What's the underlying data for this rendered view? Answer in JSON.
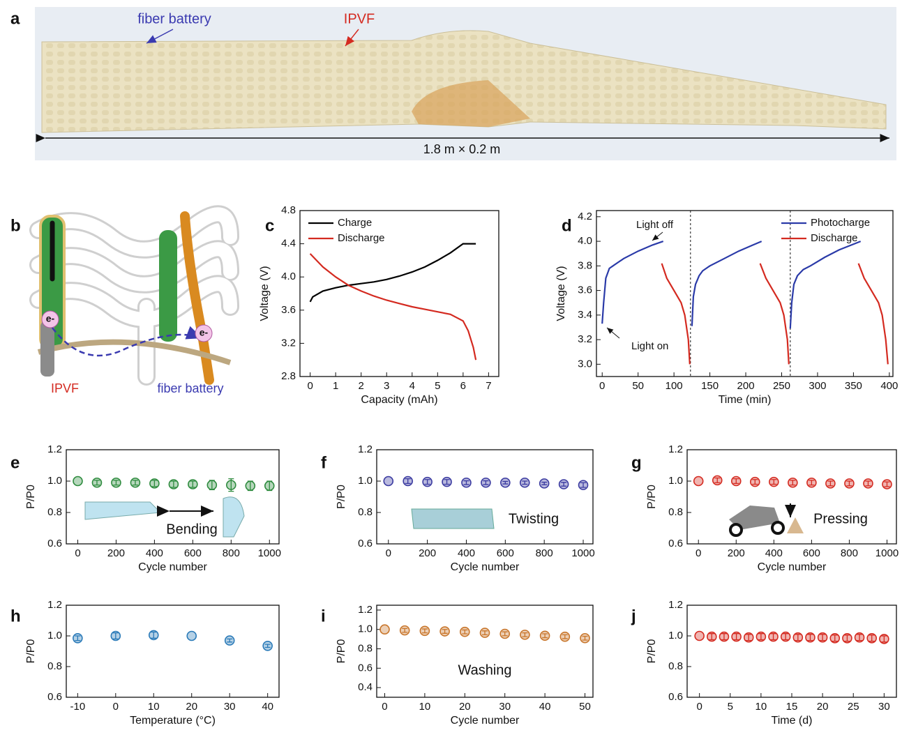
{
  "panel_labels": [
    "a",
    "b",
    "c",
    "d",
    "e",
    "f",
    "g",
    "h",
    "i",
    "j"
  ],
  "photo_a": {
    "labels": [
      "fiber battery",
      "IPVF",
      "1.8 m × 0.2 m"
    ]
  },
  "diagram_b": {
    "labels": [
      "IPVF",
      "fiber battery"
    ],
    "electron": "e-"
  },
  "chart_data": [
    {
      "type": "line",
      "xlabel": "Capacity (mAh)",
      "ylabel": "Voltage (V)",
      "xlim": [
        -0.4,
        7.4
      ],
      "xticks": [
        0,
        1,
        2,
        3,
        4,
        5,
        6,
        7
      ],
      "ylim": [
        2.8,
        4.8
      ],
      "yticks": [
        2.8,
        3.2,
        3.6,
        {
          "value": 4,
          "label": "4.0"
        },
        4.4,
        4.8
      ],
      "legend": "upper left",
      "series": [
        {
          "name": "Charge",
          "color": "#000000",
          "x": [
            0,
            0.1,
            0.5,
            1,
            1.5,
            2,
            2.5,
            3,
            3.5,
            4,
            4.5,
            5,
            5.5,
            6,
            6.5
          ],
          "values": [
            3.7,
            3.76,
            3.83,
            3.87,
            3.9,
            3.92,
            3.94,
            3.97,
            4.01,
            4.06,
            4.12,
            4.2,
            4.29,
            4.4,
            4.4
          ]
        },
        {
          "name": "Discharge",
          "color": "#d42a20",
          "x": [
            0,
            0.5,
            1,
            1.5,
            2,
            2.5,
            3,
            3.5,
            4,
            4.5,
            5,
            5.5,
            6,
            6.2,
            6.4,
            6.5
          ],
          "values": [
            4.28,
            4.12,
            4.0,
            3.9,
            3.83,
            3.77,
            3.72,
            3.68,
            3.64,
            3.61,
            3.58,
            3.55,
            3.47,
            3.35,
            3.15,
            3.0
          ]
        }
      ]
    },
    {
      "type": "line",
      "xlabel": "Time (min)",
      "ylabel": "Voltage (V)",
      "xlim": [
        -8,
        405
      ],
      "xticks": [
        0,
        50,
        100,
        150,
        200,
        250,
        300,
        350,
        400
      ],
      "ylim": [
        2.9,
        4.25
      ],
      "yticks": [
        {
          "value": 3,
          "label": "3.0"
        },
        3.2,
        3.4,
        3.6,
        3.8,
        {
          "value": 4,
          "label": "4.0"
        },
        4.2
      ],
      "legend": "upper right",
      "vlines": [
        123,
        262
      ],
      "annotations": [
        "Light off",
        "Light on"
      ],
      "series": [
        {
          "name": "Photocharge",
          "color": "#2a3aa8",
          "x": [
            0,
            2,
            5,
            10,
            15,
            30,
            50,
            70,
            85,
            null,
            125,
            127,
            130,
            135,
            140,
            150,
            170,
            190,
            210,
            222,
            null,
            262,
            264,
            267,
            272,
            280,
            290,
            310,
            330,
            360
          ],
          "values": [
            3.33,
            3.5,
            3.7,
            3.78,
            3.8,
            3.86,
            3.92,
            3.97,
            4.0,
            null,
            3.31,
            3.55,
            3.65,
            3.72,
            3.76,
            3.8,
            3.86,
            3.92,
            3.97,
            4.0,
            null,
            3.29,
            3.5,
            3.65,
            3.72,
            3.77,
            3.8,
            3.87,
            3.93,
            4.0
          ]
        },
        {
          "name": "Discharge",
          "color": "#d42a20",
          "x": [
            83,
            90,
            100,
            110,
            115,
            120,
            122,
            null,
            220,
            228,
            238,
            248,
            253,
            258,
            260,
            null,
            357,
            365,
            375,
            385,
            390,
            395,
            398
          ],
          "values": [
            3.82,
            3.7,
            3.6,
            3.5,
            3.4,
            3.2,
            3.0,
            null,
            3.82,
            3.7,
            3.6,
            3.5,
            3.4,
            3.2,
            3.0,
            null,
            3.82,
            3.7,
            3.6,
            3.5,
            3.4,
            3.2,
            3.0
          ]
        }
      ]
    },
    {
      "type": "scatter",
      "xlabel": "Cycle number",
      "ylabel": "P/P0",
      "annotations": [
        "Bending"
      ],
      "color": "#2e8b3e",
      "xlim": [
        -60,
        1050
      ],
      "xticks": [
        0,
        200,
        400,
        600,
        800,
        1000
      ],
      "ylim": [
        0.6,
        1.2
      ],
      "yticks": [
        0.6,
        0.8,
        {
          "value": 1,
          "label": "1.0"
        },
        1.2
      ],
      "x": [
        0,
        100,
        200,
        300,
        400,
        500,
        600,
        700,
        800,
        900,
        1000
      ],
      "values": [
        1.0,
        0.99,
        0.99,
        0.99,
        0.985,
        0.98,
        0.98,
        0.975,
        0.975,
        0.97,
        0.97
      ],
      "errors": [
        0,
        0.015,
        0.015,
        0.015,
        0.02,
        0.02,
        0.02,
        0.03,
        0.04,
        0.03,
        0.03
      ]
    },
    {
      "type": "scatter",
      "xlabel": "Cycle number",
      "ylabel": "P/P0",
      "annotations": [
        "Twisting"
      ],
      "color": "#3a3aa0",
      "xlim": [
        -60,
        1050
      ],
      "xticks": [
        0,
        200,
        400,
        600,
        800,
        1000
      ],
      "ylim": [
        0.6,
        1.2
      ],
      "yticks": [
        0.6,
        0.8,
        {
          "value": 1,
          "label": "1.0"
        },
        1.2
      ],
      "x": [
        0,
        100,
        200,
        300,
        400,
        500,
        600,
        700,
        800,
        900,
        1000
      ],
      "values": [
        1.0,
        1.0,
        0.995,
        0.995,
        0.99,
        0.99,
        0.99,
        0.99,
        0.985,
        0.98,
        0.975
      ],
      "errors": [
        0,
        0.015,
        0.015,
        0.015,
        0.012,
        0.012,
        0.008,
        0.01,
        0.008,
        0.012,
        0.015
      ]
    },
    {
      "type": "scatter",
      "xlabel": "Cycle number",
      "ylabel": "P/P0",
      "annotations": [
        "Pressing"
      ],
      "color": "#d42a20",
      "xlim": [
        -60,
        1050
      ],
      "xticks": [
        0,
        200,
        400,
        600,
        800,
        1000
      ],
      "ylim": [
        0.6,
        1.2
      ],
      "yticks": [
        0.6,
        0.8,
        {
          "value": 1,
          "label": "1.0"
        },
        1.2
      ],
      "x": [
        0,
        100,
        200,
        300,
        400,
        500,
        600,
        700,
        800,
        900,
        1000
      ],
      "values": [
        1.0,
        1.005,
        1.0,
        0.995,
        0.995,
        0.99,
        0.99,
        0.985,
        0.985,
        0.985,
        0.98
      ],
      "errors": [
        0,
        0.015,
        0.015,
        0.015,
        0.015,
        0.015,
        0.015,
        0.015,
        0.015,
        0.015,
        0.015
      ]
    },
    {
      "type": "scatter",
      "xlabel": "Temperature (°C)",
      "ylabel": "P/P0",
      "color": "#2a7ab8",
      "xlim": [
        -13,
        43
      ],
      "xticks": [
        -10,
        0,
        10,
        20,
        30,
        40
      ],
      "ylim": [
        0.6,
        1.2
      ],
      "yticks": [
        0.6,
        0.8,
        {
          "value": 1,
          "label": "1.0"
        },
        1.2
      ],
      "x": [
        -10,
        0,
        10,
        20,
        30,
        40
      ],
      "values": [
        0.985,
        1.0,
        1.005,
        1.0,
        0.97,
        0.935
      ],
      "errors": [
        0.015,
        0.02,
        0.02,
        0,
        0.01,
        0.01
      ]
    },
    {
      "type": "scatter",
      "xlabel": "Cycle number",
      "ylabel": "P/P0",
      "annotations": [
        "Washing"
      ],
      "color": "#c8752a",
      "xlim": [
        -2,
        52
      ],
      "xticks": [
        0,
        10,
        20,
        30,
        40,
        50
      ],
      "ylim": [
        0.3,
        1.25
      ],
      "yticks": [
        0.4,
        0.6,
        0.8,
        {
          "value": 1,
          "label": "1.0"
        },
        1.2
      ],
      "x": [
        0,
        5,
        10,
        15,
        20,
        25,
        30,
        35,
        40,
        45,
        50
      ],
      "values": [
        1.0,
        0.99,
        0.985,
        0.98,
        0.975,
        0.965,
        0.955,
        0.945,
        0.935,
        0.925,
        0.91
      ],
      "errors": [
        0,
        0.02,
        0.02,
        0.02,
        0.02,
        0.02,
        0.02,
        0.02,
        0.02,
        0.02,
        0.02
      ]
    },
    {
      "type": "scatter",
      "xlabel": "Time (d)",
      "ylabel": "P/P0",
      "color": "#d42a20",
      "xlim": [
        -2,
        32
      ],
      "xticks": [
        0,
        5,
        10,
        15,
        20,
        25,
        30
      ],
      "ylim": [
        0.6,
        1.2
      ],
      "yticks": [
        0.6,
        0.8,
        {
          "value": 1,
          "label": "1.0"
        },
        1.2
      ],
      "x": [
        0,
        2,
        4,
        6,
        8,
        10,
        12,
        14,
        16,
        18,
        20,
        22,
        24,
        26,
        28,
        30
      ],
      "values": [
        1.0,
        0.995,
        0.995,
        0.995,
        0.99,
        0.995,
        0.995,
        0.995,
        0.99,
        0.99,
        0.99,
        0.985,
        0.985,
        0.99,
        0.985,
        0.98
      ],
      "errors": [
        0,
        0.02,
        0.02,
        0.02,
        0.02,
        0.02,
        0.02,
        0.02,
        0.02,
        0.02,
        0.02,
        0.02,
        0.02,
        0.02,
        0.02,
        0.02
      ]
    }
  ]
}
